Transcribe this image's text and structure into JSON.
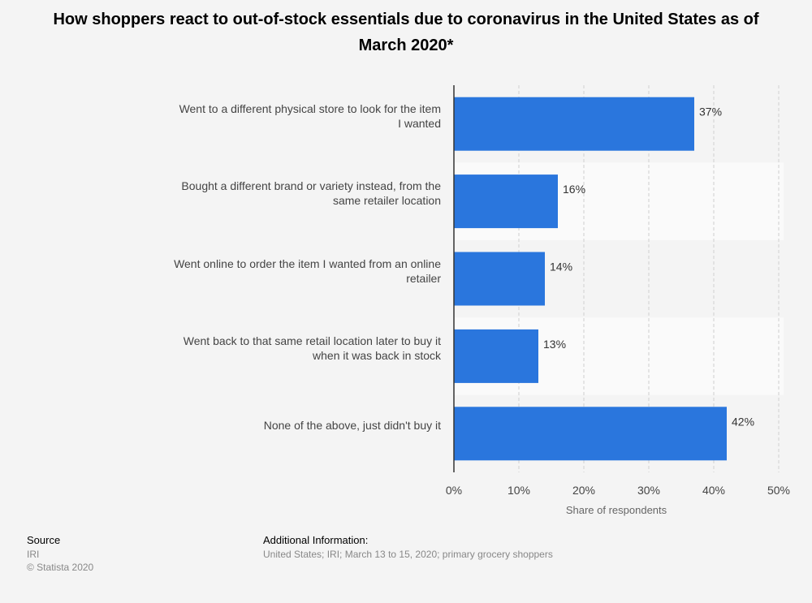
{
  "title": "How shoppers react to out-of-stock essentials due to coronavirus in the United States as of March 2020*",
  "chart_data": {
    "type": "bar",
    "orientation": "horizontal",
    "categories": [
      "Went to a different physical store to look for the item I wanted",
      "Bought a different brand or variety instead, from the same retailer location",
      "Went online to order the item I wanted from an online retailer",
      "Went back to that same retail location later to buy it when it was back in stock",
      "None of the above, just didn't buy it"
    ],
    "values": [
      37,
      16,
      14,
      13,
      42
    ],
    "value_labels": [
      "37%",
      "16%",
      "14%",
      "13%",
      "42%"
    ],
    "xlabel": "Share of respondents",
    "xlim": [
      0,
      50
    ],
    "ticks": [
      0,
      10,
      20,
      30,
      40,
      50
    ],
    "tick_labels": [
      "0%",
      "10%",
      "20%",
      "30%",
      "40%",
      "50%"
    ],
    "bar_color": "#2a76dd",
    "grid": "vertical dashed"
  },
  "footer": {
    "source_heading": "Source",
    "source_lines": [
      "IRI",
      "© Statista 2020"
    ],
    "info_heading": "Additional Information:",
    "info_text": "United States; IRI; March 13 to 15, 2020; primary grocery shoppers"
  }
}
